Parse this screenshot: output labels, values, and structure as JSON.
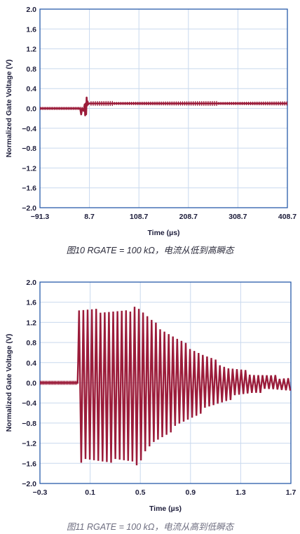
{
  "chart_data": [
    {
      "type": "line",
      "caption": "图10 RGATE = 100 kΩ，电流从低到高瞬态",
      "xlabel": "Time (µs)",
      "ylabel": "Normalized Gate Voltage (V)",
      "xlim": [
        -91.3,
        408.7
      ],
      "ylim": [
        -2.0,
        2.0
      ],
      "x_ticks": [
        "−91.3",
        "8.7",
        "108.7",
        "208.7",
        "308.7",
        "408.7"
      ],
      "y_ticks": [
        "2.0",
        "1.6",
        "1.2",
        "0.8",
        "0.4",
        "0.0",
        "−0.4",
        "−0.8",
        "−1.2",
        "−1.6",
        "−2.0"
      ],
      "grid": true,
      "line_color": "#9b1c3a",
      "series": [
        {
          "x": [
            -91.3,
            -60,
            -40,
            -20,
            -10,
            -8,
            -6,
            -3,
            -1,
            0,
            1,
            2,
            3,
            4,
            5,
            6,
            7,
            10,
            50,
            100,
            150,
            200,
            250,
            300,
            350,
            408.7
          ],
          "y": [
            0.0,
            0.0,
            0.0,
            0.0,
            0.0,
            -0.12,
            0.0,
            -0.05,
            0.08,
            -0.14,
            0.1,
            -0.12,
            0.22,
            0.06,
            0.14,
            0.08,
            0.1,
            0.1,
            0.1,
            0.1,
            0.1,
            0.1,
            0.1,
            0.1,
            0.1,
            0.1
          ]
        }
      ]
    },
    {
      "type": "line",
      "caption": "图11 RGATE = 100 kΩ，电流从高到低瞬态",
      "xlabel": "Time (µs)",
      "ylabel": "Normalized Gate Voltage (V)",
      "xlim": [
        -0.3,
        1.7
      ],
      "ylim": [
        -2.0,
        2.0
      ],
      "x_ticks": [
        "−0.3",
        "0.1",
        "0.5",
        "0.9",
        "1.3",
        "1.7"
      ],
      "y_ticks": [
        "2.0",
        "1.6",
        "1.2",
        "0.8",
        "0.4",
        "0.0",
        "−0.4",
        "−0.8",
        "−1.2",
        "−1.6",
        "−2.0"
      ],
      "grid": true,
      "line_color": "#9b1c3a",
      "oscillation": {
        "baseline": 0.0,
        "start": 0.0,
        "period": 0.034,
        "peaks": [
          [
            0.0,
            1.45
          ],
          [
            0.4,
            1.4
          ],
          [
            0.46,
            1.55
          ],
          [
            0.6,
            1.2
          ],
          [
            0.8,
            0.85
          ],
          [
            1.0,
            0.55
          ],
          [
            1.2,
            0.3
          ],
          [
            1.4,
            0.18
          ],
          [
            1.55,
            0.12
          ],
          [
            1.7,
            0.1
          ]
        ],
        "troughs": [
          [
            0.0,
            -1.55
          ],
          [
            0.45,
            -1.55
          ],
          [
            0.46,
            -1.65
          ],
          [
            0.6,
            -1.2
          ],
          [
            0.8,
            -0.85
          ],
          [
            1.0,
            -0.55
          ],
          [
            1.2,
            -0.32
          ],
          [
            1.4,
            -0.18
          ],
          [
            1.55,
            -0.14
          ],
          [
            1.7,
            -0.12
          ]
        ]
      }
    }
  ]
}
